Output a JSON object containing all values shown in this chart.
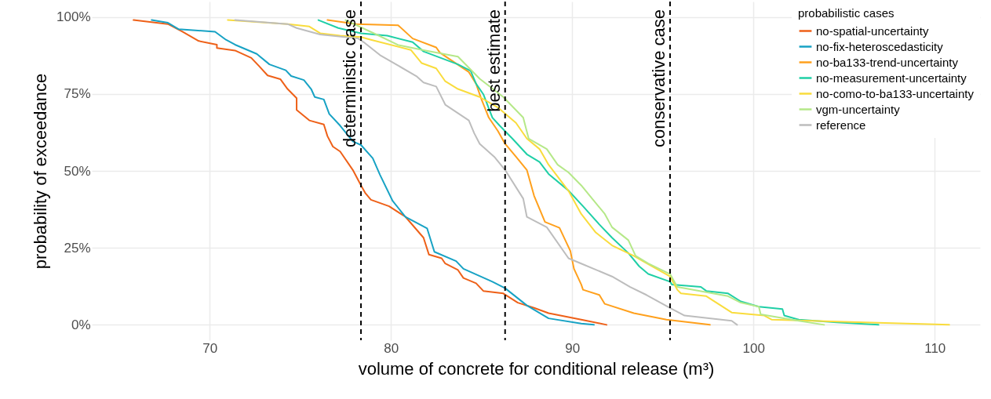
{
  "chart_data": {
    "type": "line",
    "xlabel": "volume of concrete for conditional release (m³)",
    "ylabel": "probability of exceedance",
    "legend_title": "probabilistic cases",
    "legend": "top right",
    "grid": true,
    "xlim": [
      63.5,
      112.5
    ],
    "xticks": [
      70,
      80,
      90,
      100,
      110
    ],
    "ylim": [
      -5,
      105
    ],
    "yticks": [
      {
        "value": 0,
        "label": "0%"
      },
      {
        "value": 25,
        "label": "25%"
      },
      {
        "value": 50,
        "label": "50%"
      },
      {
        "value": 75,
        "label": "75%"
      },
      {
        "value": 100,
        "label": "100%"
      }
    ],
    "ref_lines": [
      {
        "axis": "x",
        "value": 78.35,
        "label": "deterministic case",
        "color": "#000000",
        "line_style": "dashed"
      },
      {
        "axis": "x",
        "value": 86.3,
        "label": "best estimate",
        "color": "#000000",
        "line_style": "dashed"
      },
      {
        "axis": "x",
        "value": 95.4,
        "label": "conservative case",
        "color": "#000000",
        "line_style": "dashed"
      }
    ],
    "series": [
      {
        "name": "no-spatial-uncertainty",
        "color": "#ee6018",
        "x": [
          65.8,
          67.7,
          68.5,
          69.4,
          70.4,
          70.4,
          71.4,
          72.3,
          72.7,
          73.2,
          73.9,
          74.3,
          74.8,
          74.8,
          75.5,
          76.3,
          76.5,
          76.8,
          77.2,
          77.9,
          78.35,
          78.6,
          78.9,
          79.9,
          80.8,
          81.8,
          82.1,
          82.8,
          83.0,
          83.7,
          84.0,
          84.7,
          85.1,
          86.2,
          87.0,
          87.9,
          88.7,
          90.5,
          91.9
        ],
        "values": [
          99.0,
          97.7,
          95.2,
          92.2,
          91.0,
          89.9,
          89.1,
          86.7,
          84.2,
          81.0,
          79.8,
          76.6,
          73.6,
          69.8,
          66.4,
          65.1,
          61.3,
          57.9,
          56.3,
          50.3,
          45.3,
          42.7,
          40.6,
          38.5,
          35.1,
          28.3,
          22.8,
          21.6,
          19.9,
          17.8,
          15.2,
          13.5,
          11.0,
          10.2,
          7.2,
          5.5,
          3.8,
          1.7,
          0
        ]
      },
      {
        "name": "no-fix-heteroscedasticity",
        "color": "#17a2c4",
        "x": [
          66.8,
          67.7,
          68.3,
          70.3,
          70.9,
          71.4,
          72.6,
          73.3,
          74.2,
          74.5,
          75.2,
          75.6,
          75.8,
          76.3,
          76.6,
          77.2,
          77.9,
          78.35,
          79.0,
          79.4,
          80.1,
          80.8,
          82.0,
          82.4,
          83.6,
          84.0,
          85.6,
          86.3,
          87.5,
          88.7,
          90.5,
          91.2
        ],
        "values": [
          99.0,
          98.1,
          96.0,
          95.2,
          92.6,
          91.0,
          88.0,
          84.6,
          82.7,
          80.8,
          79.5,
          76.6,
          74.0,
          73.2,
          68.5,
          64.7,
          59.6,
          58.4,
          54.1,
          48.7,
          40.2,
          35.1,
          31.3,
          23.7,
          20.7,
          18.2,
          14.0,
          11.9,
          6.3,
          2.1,
          0.4,
          0
        ]
      },
      {
        "name": "no-ba133-trend-uncertainty",
        "color": "#ffa01c",
        "x": [
          76.5,
          78.1,
          80.4,
          81.2,
          82.5,
          82.7,
          84.3,
          84.7,
          85.0,
          85.4,
          85.9,
          86.3,
          86.9,
          87.5,
          87.9,
          88.5,
          89.3,
          89.9,
          90.1,
          90.5,
          90.6,
          91.5,
          91.8,
          93.4,
          95.2,
          97.6
        ],
        "values": [
          99.0,
          97.7,
          97.3,
          93.0,
          90.1,
          88.4,
          82.1,
          78.3,
          73.2,
          67.3,
          63.0,
          58.8,
          54.6,
          50.3,
          41.9,
          33.4,
          31.5,
          24.0,
          18.2,
          13.1,
          11.4,
          9.7,
          6.8,
          3.8,
          1.7,
          0
        ]
      },
      {
        "name": "no-measurement-uncertainty",
        "color": "#1fcfa6",
        "x": [
          76.0,
          77.1,
          78.35,
          79.8,
          81.2,
          81.8,
          83.7,
          84.4,
          84.7,
          85.1,
          85.6,
          86.0,
          86.7,
          87.5,
          88.2,
          88.7,
          89.8,
          90.6,
          91.5,
          92.2,
          93.1,
          93.7,
          94.2,
          95.4,
          95.5,
          97.1,
          97.4,
          98.6,
          99.3,
          100.3,
          101.6,
          101.7,
          102.5,
          104.6,
          106.9
        ],
        "values": [
          99.0,
          96.4,
          94.7,
          93.9,
          91.8,
          88.8,
          84.6,
          82.5,
          78.3,
          74.9,
          67.3,
          64.7,
          60.5,
          55.4,
          52.9,
          49.0,
          43.6,
          38.5,
          32.6,
          28.3,
          23.3,
          19.0,
          16.5,
          14.0,
          13.1,
          12.3,
          11.0,
          10.2,
          7.6,
          5.9,
          5.1,
          3.0,
          1.7,
          0.8,
          0
        ]
      },
      {
        "name": "no-como-to-ba133-uncertainty",
        "color": "#f9dc3c",
        "x": [
          71.0,
          74.3,
          75.5,
          76.1,
          77.2,
          78.35,
          78.9,
          81.1,
          81.7,
          82.5,
          83.0,
          83.7,
          84.9,
          85.9,
          86.9,
          87.5,
          88.2,
          88.7,
          89.8,
          90.5,
          91.3,
          92.2,
          93.4,
          93.9,
          95.4,
          95.8,
          96.0,
          97.4,
          98.8,
          100.6,
          101.0,
          103.2,
          106.1,
          110.8
        ],
        "values": [
          99.0,
          97.7,
          96.9,
          94.7,
          93.9,
          93.5,
          92.6,
          89.3,
          85.0,
          83.3,
          79.1,
          76.6,
          74.0,
          70.6,
          65.6,
          60.5,
          57.1,
          52.0,
          43.5,
          36.0,
          30.0,
          25.8,
          22.4,
          20.7,
          15.7,
          11.4,
          10.2,
          9.3,
          4.0,
          3.0,
          1.7,
          1.3,
          0.8,
          0
        ]
      },
      {
        "name": "vgm-uncertainty",
        "color": "#b5e888",
        "x": [
          77.5,
          79.2,
          80.4,
          81.8,
          83.7,
          84.9,
          86.2,
          87.3,
          87.6,
          88.6,
          89.2,
          89.8,
          90.5,
          91.8,
          92.2,
          93.1,
          93.5,
          94.2,
          95.4,
          95.8,
          97.4,
          98.6,
          99.3,
          100.3,
          100.4,
          102.5,
          103.9
        ],
        "values": [
          99.0,
          94.3,
          90.9,
          89.2,
          87.1,
          79.9,
          74.0,
          67.3,
          60.5,
          57.1,
          52.0,
          49.5,
          45.3,
          36.0,
          31.7,
          27.5,
          22.4,
          19.9,
          16.5,
          12.3,
          10.6,
          9.3,
          7.2,
          5.9,
          3.4,
          1.3,
          0
        ]
      },
      {
        "name": "reference",
        "color": "#bdbdbd",
        "x": [
          71.4,
          74.3,
          74.8,
          76.1,
          78.2,
          78.5,
          79.4,
          80.4,
          81.4,
          81.8,
          82.5,
          83.0,
          84.3,
          84.6,
          84.9,
          85.7,
          86.3,
          87.3,
          87.5,
          88.6,
          89.8,
          90.5,
          92.2,
          93.2,
          94.1,
          95.4,
          96.2,
          98.8,
          99.1
        ],
        "values": [
          99.0,
          97.7,
          96.4,
          94.3,
          93.0,
          91.8,
          87.6,
          84.2,
          80.8,
          78.7,
          77.4,
          71.5,
          66.4,
          62.2,
          58.8,
          54.6,
          50.3,
          41.0,
          35.1,
          31.7,
          21.6,
          19.9,
          15.7,
          12.3,
          9.7,
          5.5,
          3.0,
          1.3,
          0
        ]
      }
    ]
  }
}
